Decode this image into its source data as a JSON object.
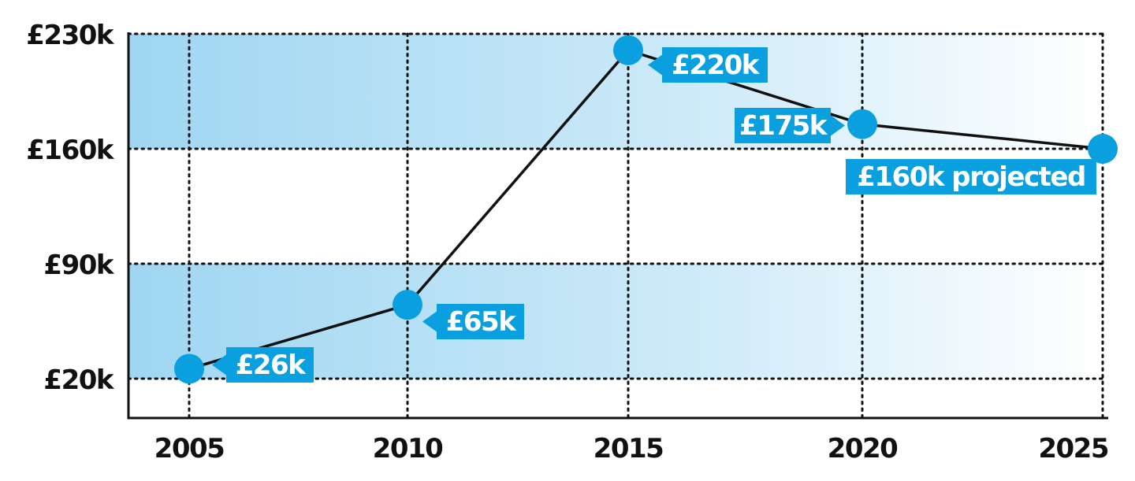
{
  "chart_data": {
    "type": "line",
    "x": [
      2005,
      2010,
      2015,
      2020,
      2025
    ],
    "x_tick_labels": [
      "2005",
      "2010",
      "2015",
      "2020",
      "2025"
    ],
    "y_tick_values": [
      20,
      90,
      160,
      230
    ],
    "y_tick_labels": [
      "£20k",
      "£90k",
      "£160k",
      "£230k"
    ],
    "ylim": [
      0,
      230
    ],
    "series": [
      {
        "values": [
          26,
          65,
          220,
          175,
          160
        ],
        "labels": [
          "£26k",
          "£65k",
          "£220k",
          "£175k",
          "£160k projected"
        ]
      }
    ],
    "grid": true,
    "title": "",
    "xlabel": "",
    "ylabel": ""
  },
  "colors": {
    "point": "#0aa0e0",
    "label_bg": "#0aa0e0",
    "line": "#111111",
    "band": "#9fd6f2"
  }
}
